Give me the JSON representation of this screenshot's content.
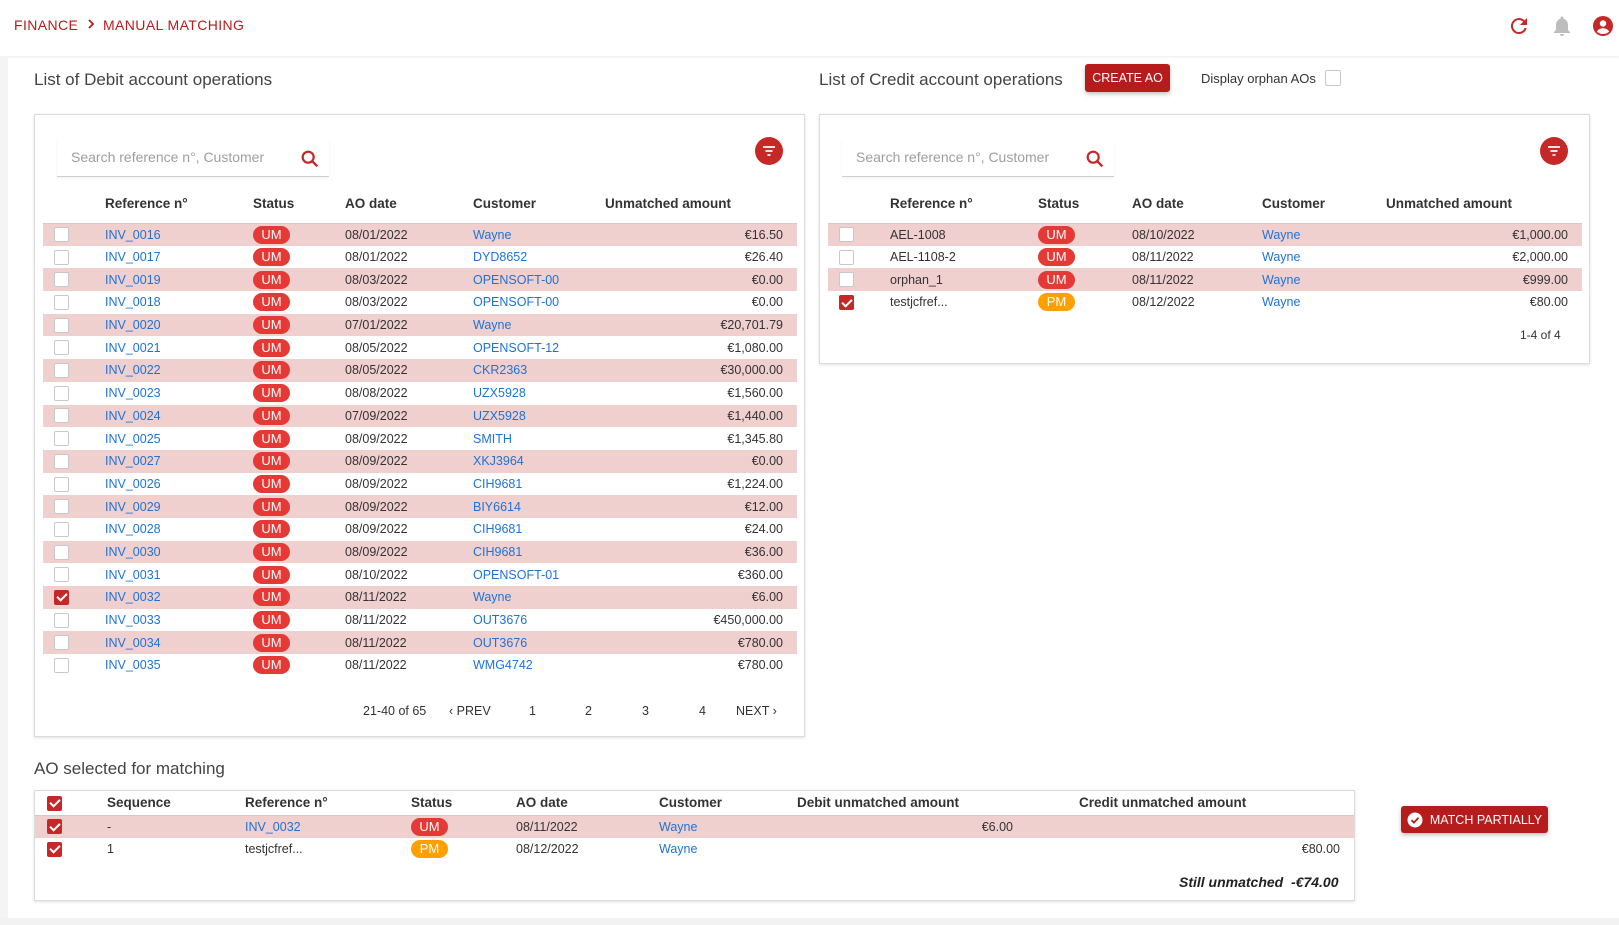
{
  "breadcrumb": {
    "root": "FINANCE",
    "current": "MANUAL MATCHING"
  },
  "topbar_icons": [
    "refresh-icon",
    "bell-icon",
    "account-icon"
  ],
  "debit": {
    "title": "List of Debit account operations",
    "search_placeholder": "Search reference n°, Customer",
    "columns": {
      "ref": "Reference n°",
      "status": "Status",
      "date": "AO date",
      "customer": "Customer",
      "amount": "Unmatched amount"
    },
    "rows": [
      {
        "checked": false,
        "ref": "INV_0016",
        "status": "UM",
        "date": "08/01/2022",
        "customer": "Wayne",
        "amount": "€16.50"
      },
      {
        "checked": false,
        "ref": "INV_0017",
        "status": "UM",
        "date": "08/01/2022",
        "customer": "DYD8652",
        "amount": "€26.40"
      },
      {
        "checked": false,
        "ref": "INV_0019",
        "status": "UM",
        "date": "08/03/2022",
        "customer": "OPENSOFT-00",
        "amount": "€0.00"
      },
      {
        "checked": false,
        "ref": "INV_0018",
        "status": "UM",
        "date": "08/03/2022",
        "customer": "OPENSOFT-00",
        "amount": "€0.00"
      },
      {
        "checked": false,
        "ref": "INV_0020",
        "status": "UM",
        "date": "07/01/2022",
        "customer": "Wayne",
        "amount": "€20,701.79"
      },
      {
        "checked": false,
        "ref": "INV_0021",
        "status": "UM",
        "date": "08/05/2022",
        "customer": "OPENSOFT-12",
        "amount": "€1,080.00"
      },
      {
        "checked": false,
        "ref": "INV_0022",
        "status": "UM",
        "date": "08/05/2022",
        "customer": "CKR2363",
        "amount": "€30,000.00"
      },
      {
        "checked": false,
        "ref": "INV_0023",
        "status": "UM",
        "date": "08/08/2022",
        "customer": "UZX5928",
        "amount": "€1,560.00"
      },
      {
        "checked": false,
        "ref": "INV_0024",
        "status": "UM",
        "date": "07/09/2022",
        "customer": "UZX5928",
        "amount": "€1,440.00"
      },
      {
        "checked": false,
        "ref": "INV_0025",
        "status": "UM",
        "date": "08/09/2022",
        "customer": "SMITH",
        "amount": "€1,345.80"
      },
      {
        "checked": false,
        "ref": "INV_0027",
        "status": "UM",
        "date": "08/09/2022",
        "customer": "XKJ3964",
        "amount": "€0.00"
      },
      {
        "checked": false,
        "ref": "INV_0026",
        "status": "UM",
        "date": "08/09/2022",
        "customer": "CIH9681",
        "amount": "€1,224.00"
      },
      {
        "checked": false,
        "ref": "INV_0029",
        "status": "UM",
        "date": "08/09/2022",
        "customer": "BIY6614",
        "amount": "€12.00"
      },
      {
        "checked": false,
        "ref": "INV_0028",
        "status": "UM",
        "date": "08/09/2022",
        "customer": "CIH9681",
        "amount": "€24.00"
      },
      {
        "checked": false,
        "ref": "INV_0030",
        "status": "UM",
        "date": "08/09/2022",
        "customer": "CIH9681",
        "amount": "€36.00"
      },
      {
        "checked": false,
        "ref": "INV_0031",
        "status": "UM",
        "date": "08/10/2022",
        "customer": "OPENSOFT-01",
        "amount": "€360.00"
      },
      {
        "checked": true,
        "ref": "INV_0032",
        "status": "UM",
        "date": "08/11/2022",
        "customer": "Wayne",
        "amount": "€6.00"
      },
      {
        "checked": false,
        "ref": "INV_0033",
        "status": "UM",
        "date": "08/11/2022",
        "customer": "OUT3676",
        "amount": "€450,000.00"
      },
      {
        "checked": false,
        "ref": "INV_0034",
        "status": "UM",
        "date": "08/11/2022",
        "customer": "OUT3676",
        "amount": "€780.00"
      },
      {
        "checked": false,
        "ref": "INV_0035",
        "status": "UM",
        "date": "08/11/2022",
        "customer": "WMG4742",
        "amount": "€780.00"
      }
    ],
    "pagination": {
      "range": "21-40 of 65",
      "prev": "PREV",
      "next": "NEXT",
      "pages": [
        "1",
        "2",
        "3",
        "4"
      ],
      "current_page": "2"
    }
  },
  "credit": {
    "title": "List of Credit account operations",
    "create_button": "CREATE AO",
    "orphan_label": "Display orphan AOs",
    "orphan_checked": false,
    "search_placeholder": "Search reference n°, Customer",
    "columns": {
      "ref": "Reference n°",
      "status": "Status",
      "date": "AO date",
      "customer": "Customer",
      "amount": "Unmatched amount"
    },
    "rows": [
      {
        "checked": false,
        "ref": "AEL-1008",
        "status": "UM",
        "date": "08/10/2022",
        "customer": "Wayne",
        "amount": "€1,000.00"
      },
      {
        "checked": false,
        "ref": "AEL-1108-2",
        "status": "UM",
        "date": "08/11/2022",
        "customer": "Wayne",
        "amount": "€2,000.00"
      },
      {
        "checked": false,
        "ref": "orphan_1",
        "status": "UM",
        "date": "08/11/2022",
        "customer": "Wayne",
        "amount": "€999.00"
      },
      {
        "checked": true,
        "ref": "testjcfref...",
        "status": "PM",
        "date": "08/12/2022",
        "customer": "Wayne",
        "amount": "€80.00"
      }
    ],
    "pagination": {
      "range": "1-4 of 4"
    }
  },
  "selected": {
    "title": "AO selected for matching",
    "columns": {
      "sequence": "Sequence",
      "ref": "Reference n°",
      "status": "Status",
      "date": "AO date",
      "customer": "Customer",
      "debit": "Debit unmatched amount",
      "credit": "Credit unmatched amount"
    },
    "rows": [
      {
        "sequence": "-",
        "ref": "INV_0032",
        "ref_link": true,
        "status": "UM",
        "date": "08/11/2022",
        "customer": "Wayne",
        "debit": "€6.00",
        "credit": ""
      },
      {
        "sequence": "1",
        "ref": "testjcfref...",
        "ref_link": false,
        "status": "PM",
        "date": "08/12/2022",
        "customer": "Wayne",
        "debit": "",
        "credit": "€80.00"
      }
    ],
    "still_unmatched_label": "Still unmatched",
    "still_unmatched_value": "-€74.00",
    "match_button": "MATCH PARTIALLY"
  },
  "colors": {
    "accent": "#b71c1c",
    "row_alt": "#f0cfcf",
    "link": "#1e73d8",
    "um": "#e53935",
    "pm": "#ffa000"
  }
}
